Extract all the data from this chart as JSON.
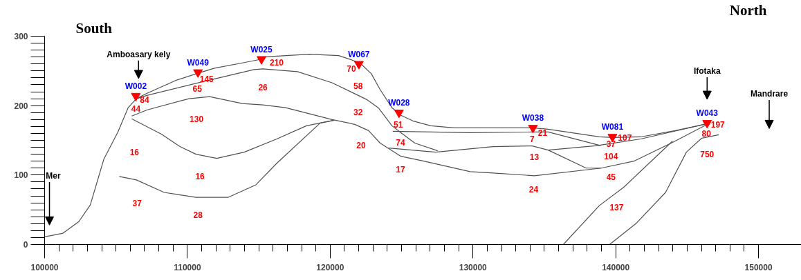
{
  "chart_data": {
    "type": "line",
    "xlim": [
      100000,
      153000
    ],
    "ylim": [
      0,
      300
    ],
    "xticks": [
      100000,
      110000,
      120000,
      130000,
      140000,
      150000
    ],
    "yticks": [
      0,
      100,
      200,
      300
    ],
    "grid": false,
    "line_style": "solid",
    "series": [
      {
        "color": "#505050",
        "x": [
          100000,
          101260,
          102400,
          103200,
          104150,
          105130,
          105850,
          106430,
          107200,
          109150,
          110790,
          111900,
          113980,
          114950,
          115290,
          118530,
          120600,
          122060,
          122880,
          123500,
          124330,
          124960,
          125790,
          127040,
          128690,
          131400,
          134150,
          135270,
          138850,
          139820,
          141750,
          144170,
          146400
        ],
        "values": [
          11,
          16,
          33,
          57,
          123,
          162,
          197,
          210,
          218,
          236,
          247,
          254,
          262,
          266,
          270,
          274,
          272,
          262,
          246,
          223,
          197,
          186,
          178,
          171,
          168,
          168,
          168,
          166,
          155,
          154,
          155,
          164,
          174
        ]
      },
      {
        "color": "#505050",
        "x": [
          106430,
          107200,
          110790,
          114660,
          115290,
          117710,
          120130,
          122540,
          123370,
          124330,
          124960,
          125930,
          127530
        ],
        "values": [
          210,
          215,
          233,
          252,
          253,
          249,
          233,
          209,
          197,
          171,
          161,
          146,
          135
        ]
      },
      {
        "color": "#505050",
        "x": [
          124380,
          129800,
          134150,
          135270,
          138850,
          141750,
          146400
        ],
        "values": [
          163,
          161,
          162,
          162,
          143,
          152,
          174
        ]
      },
      {
        "color": "#505050",
        "x": [
          124090,
          127380,
          131400,
          134150,
          135270,
          137930,
          138990,
          141270,
          143980,
          146400
        ],
        "values": [
          139,
          133,
          141,
          142,
          136,
          110,
          110,
          120,
          147,
          173
        ]
      },
      {
        "color": "#505050",
        "x": [
          135270,
          138990
        ],
        "values": [
          136,
          143
        ]
      },
      {
        "color": "#505050",
        "x": [
          106100,
          107200,
          110110,
          111560,
          113840,
          115290,
          116880,
          120130,
          121720,
          122690,
          123500,
          124960,
          126560,
          129800,
          131400,
          134300,
          138990
        ],
        "values": [
          185,
          194,
          210,
          213,
          203,
          201,
          197,
          180,
          173,
          164,
          146,
          127,
          120,
          105,
          103,
          99,
          110
        ]
      },
      {
        "color": "#505050",
        "x": [
          106100,
          108180,
          109480,
          110600,
          112050,
          113980,
          116260,
          118340,
          120270
        ],
        "values": [
          181,
          159,
          141,
          130,
          124,
          133,
          152,
          171,
          179
        ]
      },
      {
        "color": "#505050",
        "x": [
          105230,
          106430,
          108370,
          110600,
          112870,
          114800,
          116260,
          119300,
          120270
        ],
        "values": [
          98,
          93,
          75,
          68,
          68,
          86,
          117,
          175,
          179
        ]
      },
      {
        "color": "#505050",
        "x": [
          136330,
          138850,
          140590,
          143980
        ],
        "values": [
          0,
          56,
          83,
          149
        ]
      },
      {
        "color": "#505050",
        "x": [
          139570,
          141410,
          143490,
          144950,
          146010,
          147220
        ],
        "values": [
          0,
          30,
          75,
          133,
          153,
          158
        ]
      },
      {
        "type": "scatter",
        "marker": "triangle",
        "color": "#ff0000",
        "x": [
          106390,
          110740,
          115190,
          122010,
          124820,
          134200,
          139770,
          146400
        ],
        "values": [
          214,
          248,
          267,
          260,
          190,
          168,
          155,
          175
        ],
        "value_labels": [
          "W002",
          "W049",
          "W025",
          "W067",
          "W028",
          "W038",
          "W081",
          "W043"
        ]
      }
    ],
    "annotations": [
      "South",
      "North",
      "Mer",
      "Amboasary kely",
      "Ifotaka",
      "Mandrare",
      "84",
      "44",
      "65",
      "26",
      "130",
      "16",
      "16",
      "37",
      "28",
      "145",
      "210",
      "70",
      "58",
      "32",
      "20",
      "51",
      "74",
      "17",
      "21",
      "7",
      "13",
      "24",
      "107",
      "37",
      "104",
      "45",
      "137",
      "197",
      "80",
      "750"
    ]
  }
}
